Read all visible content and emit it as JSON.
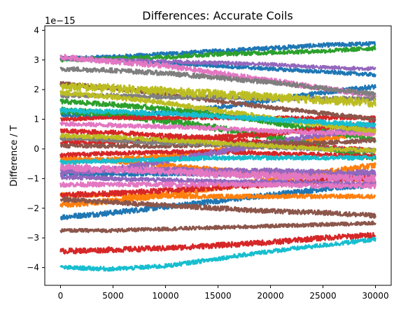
{
  "chart_data": {
    "type": "line",
    "title": "Differences: Accurate Coils",
    "xlabel": "",
    "ylabel": "Difference / T",
    "offset_text": "1e−15",
    "xlim": [
      -1500,
      31500
    ],
    "ylim": [
      -4.6,
      4.15
    ],
    "x_ticks": [
      0,
      5000,
      10000,
      15000,
      20000,
      25000,
      30000
    ],
    "x_tick_labels": [
      "0",
      "5000",
      "10000",
      "15000",
      "20000",
      "25000",
      "30000"
    ],
    "y_ticks": [
      -4,
      -3,
      -2,
      -1,
      0,
      1,
      2,
      3,
      4
    ],
    "y_tick_labels": [
      "−4",
      "−3",
      "−2",
      "−1",
      "0",
      "1",
      "2",
      "3",
      "4"
    ],
    "grid": false,
    "legend": "none",
    "x": [
      0,
      5000,
      10000,
      15000,
      20000,
      25000,
      30000
    ],
    "series": [
      {
        "color": "#1f77b4",
        "values": [
          3.05,
          3.1,
          3.2,
          3.3,
          3.4,
          3.5,
          3.55
        ],
        "noise": 0.07
      },
      {
        "color": "#1f77b4",
        "values": [
          -2.3,
          -2.15,
          -1.95,
          -1.75,
          -1.55,
          -1.35,
          -1.2
        ],
        "noise": 0.09
      },
      {
        "color": "#1f77b4",
        "values": [
          1.15,
          1.1,
          1.2,
          1.4,
          1.65,
          1.9,
          2.1
        ],
        "noise": 0.08
      },
      {
        "color": "#1f77b4",
        "values": [
          -0.85,
          -0.85,
          -0.85,
          -0.85,
          -0.85,
          -0.85,
          -0.85
        ],
        "noise": 0.06
      },
      {
        "color": "#1f77b4",
        "values": [
          3.05,
          3.0,
          2.9,
          2.8,
          2.7,
          2.6,
          2.5
        ],
        "noise": 0.06
      },
      {
        "color": "#ff7f0e",
        "values": [
          -1.9,
          -1.75,
          -1.55,
          -1.3,
          -1.05,
          -0.8,
          -0.55
        ],
        "noise": 0.1
      },
      {
        "color": "#ff7f0e",
        "values": [
          -0.4,
          -0.35,
          -0.25,
          -0.05,
          0.15,
          0.35,
          0.55
        ],
        "noise": 0.09
      },
      {
        "color": "#ff7f0e",
        "values": [
          -0.3,
          -0.4,
          -0.55,
          -0.7,
          -0.85,
          -0.95,
          -1.05
        ],
        "noise": 0.08
      },
      {
        "color": "#ff7f0e",
        "values": [
          -1.55,
          -1.55,
          -1.6,
          -1.6,
          -1.6,
          -1.6,
          -1.6
        ],
        "noise": 0.07
      },
      {
        "color": "#2ca02c",
        "values": [
          3.0,
          3.05,
          3.1,
          3.2,
          3.25,
          3.3,
          3.4
        ],
        "noise": 0.07
      },
      {
        "color": "#2ca02c",
        "values": [
          1.3,
          1.15,
          0.95,
          0.7,
          0.4,
          0.05,
          -0.3
        ],
        "noise": 0.12
      },
      {
        "color": "#2ca02c",
        "values": [
          1.6,
          1.5,
          1.35,
          1.15,
          0.9,
          0.6,
          0.3
        ],
        "noise": 0.08
      },
      {
        "color": "#d62728",
        "values": [
          -3.45,
          -3.4,
          -3.35,
          -3.25,
          -3.15,
          -3.0,
          -2.9
        ],
        "noise": 0.09
      },
      {
        "color": "#d62728",
        "values": [
          -1.55,
          -1.5,
          -1.4,
          -1.3,
          -1.2,
          -1.05,
          -0.95
        ],
        "noise": 0.09
      },
      {
        "color": "#d62728",
        "values": [
          0.6,
          0.55,
          0.45,
          0.35,
          0.2,
          0.05,
          -0.05
        ],
        "noise": 0.08
      },
      {
        "color": "#d62728",
        "values": [
          0.2,
          0.25,
          0.3,
          0.4,
          0.5,
          0.7,
          0.9
        ],
        "noise": 0.08
      },
      {
        "color": "#d62728",
        "values": [
          -0.2,
          -0.15,
          -0.1,
          -0.1,
          -0.15,
          -0.2,
          -0.25
        ],
        "noise": 0.07
      },
      {
        "color": "#d62728",
        "values": [
          1.0,
          1.05,
          1.05,
          1.05,
          1.05,
          1.05,
          1.05
        ],
        "noise": 0.06
      },
      {
        "color": "#9467bd",
        "values": [
          -0.7,
          -0.7,
          -0.7,
          -0.75,
          -0.75,
          -0.8,
          -0.8
        ],
        "noise": 0.1
      },
      {
        "color": "#9467bd",
        "values": [
          -0.8,
          -0.7,
          -0.4,
          -0.1,
          0.2,
          0.5,
          0.7
        ],
        "noise": 0.1
      },
      {
        "color": "#9467bd",
        "values": [
          3.05,
          3.0,
          2.95,
          2.9,
          2.85,
          2.75,
          2.7
        ],
        "noise": 0.06
      },
      {
        "color": "#9467bd",
        "values": [
          -0.95,
          -1.0,
          -1.05,
          -1.1,
          -1.1,
          -1.15,
          -1.15
        ],
        "noise": 0.07
      },
      {
        "color": "#8c564b",
        "values": [
          -2.75,
          -2.75,
          -2.7,
          -2.65,
          -2.6,
          -2.55,
          -2.5
        ],
        "noise": 0.06
      },
      {
        "color": "#8c564b",
        "values": [
          -1.7,
          -1.8,
          -1.9,
          -2.0,
          -2.1,
          -2.15,
          -2.25
        ],
        "noise": 0.08
      },
      {
        "color": "#8c564b",
        "values": [
          0.1,
          0.1,
          0.1,
          0.15,
          0.2,
          0.2,
          0.3
        ],
        "noise": 0.07
      },
      {
        "color": "#8c564b",
        "values": [
          2.2,
          2.05,
          1.85,
          1.6,
          1.4,
          1.2,
          1.0
        ],
        "noise": 0.07
      },
      {
        "color": "#e377c2",
        "values": [
          3.1,
          2.95,
          2.8,
          2.55,
          2.3,
          2.05,
          1.8
        ],
        "noise": 0.09
      },
      {
        "color": "#e377c2",
        "values": [
          -0.6,
          -0.7,
          -0.75,
          -0.85,
          -0.9,
          -0.95,
          -1.0
        ],
        "noise": 0.12
      },
      {
        "color": "#e377c2",
        "values": [
          -1.2,
          -1.2,
          -1.2,
          -1.2,
          -1.2,
          -1.25,
          -1.25
        ],
        "noise": 0.08
      },
      {
        "color": "#e377c2",
        "values": [
          0.85,
          0.8,
          0.75,
          0.7,
          0.6,
          0.55,
          0.5
        ],
        "noise": 0.07
      },
      {
        "color": "#7f7f7f",
        "values": [
          2.7,
          2.65,
          2.55,
          2.4,
          2.25,
          2.05,
          1.85
        ],
        "noise": 0.08
      },
      {
        "color": "#7f7f7f",
        "values": [
          1.8,
          1.8,
          1.75,
          1.75,
          1.7,
          1.7,
          1.7
        ],
        "noise": 0.07
      },
      {
        "color": "#7f7f7f",
        "values": [
          0.35,
          0.3,
          0.2,
          0.15,
          0.05,
          0.0,
          -0.05
        ],
        "noise": 0.07
      },
      {
        "color": "#bcbd22",
        "values": [
          2.1,
          2.05,
          1.95,
          1.85,
          1.75,
          1.65,
          1.55
        ],
        "noise": 0.14
      },
      {
        "color": "#bcbd22",
        "values": [
          1.9,
          1.75,
          1.55,
          1.3,
          1.05,
          0.8,
          0.6
        ],
        "noise": 0.08
      },
      {
        "color": "#bcbd22",
        "values": [
          0.45,
          0.4,
          0.3,
          0.2,
          0.1,
          0.0,
          -0.05
        ],
        "noise": 0.07
      },
      {
        "color": "#17becf",
        "values": [
          -4.0,
          -4.05,
          -3.95,
          -3.7,
          -3.45,
          -3.25,
          -3.05
        ],
        "noise": 0.07
      },
      {
        "color": "#17becf",
        "values": [
          1.3,
          1.25,
          1.2,
          1.1,
          1.0,
          0.9,
          0.8
        ],
        "noise": 0.08
      },
      {
        "color": "#17becf",
        "values": [
          -0.45,
          -0.4,
          -0.35,
          -0.3,
          -0.3,
          -0.3,
          -0.3
        ],
        "noise": 0.07
      }
    ]
  }
}
